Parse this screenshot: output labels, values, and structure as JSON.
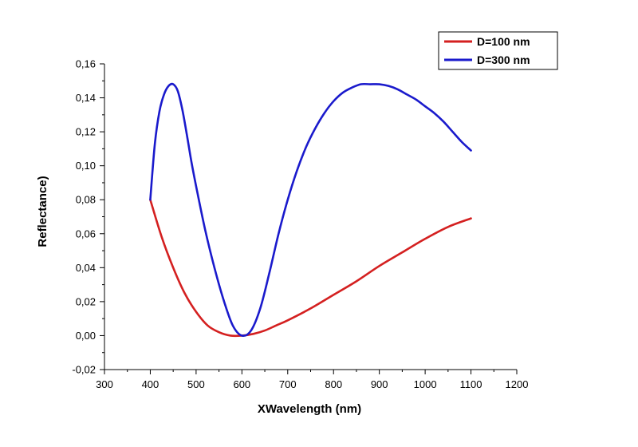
{
  "chart_data": {
    "type": "line",
    "xlabel": "XWavelength (nm)",
    "ylabel": "Reflectance)",
    "xlim": [
      300,
      1200
    ],
    "ylim": [
      -0.02,
      0.16
    ],
    "x_ticks": [
      300,
      400,
      500,
      600,
      700,
      800,
      900,
      1000,
      1100,
      1200
    ],
    "x_tick_labels": [
      "300",
      "400",
      "500",
      "600",
      "700",
      "800",
      "900",
      "1000",
      "1100",
      "1200"
    ],
    "y_ticks": [
      -0.02,
      0.0,
      0.02,
      0.04,
      0.06,
      0.08,
      0.1,
      0.12,
      0.14,
      0.16
    ],
    "y_tick_labels": [
      "-0,02",
      "0,00",
      "0,02",
      "0,04",
      "0,06",
      "0,08",
      "0,10",
      "0,12",
      "0,14",
      "0,16"
    ],
    "grid": false,
    "legend_position": "top-right",
    "series": [
      {
        "name": "D=100 nm",
        "color": "#d42020",
        "x": [
          400,
          425,
          450,
          475,
          500,
          525,
          550,
          575,
          600,
          625,
          650,
          675,
          700,
          750,
          800,
          850,
          900,
          950,
          1000,
          1050,
          1100
        ],
        "y": [
          0.08,
          0.058,
          0.04,
          0.025,
          0.014,
          0.006,
          0.002,
          0.0,
          0.0,
          0.001,
          0.003,
          0.006,
          0.009,
          0.016,
          0.024,
          0.032,
          0.041,
          0.049,
          0.057,
          0.064,
          0.069
        ]
      },
      {
        "name": "D=300 nm",
        "color": "#1a1acc",
        "x": [
          400,
          410,
          420,
          430,
          440,
          450,
          460,
          470,
          480,
          490,
          500,
          520,
          540,
          560,
          580,
          600,
          620,
          640,
          660,
          680,
          700,
          720,
          740,
          760,
          780,
          800,
          820,
          840,
          860,
          880,
          900,
          920,
          940,
          960,
          980,
          1000,
          1020,
          1040,
          1060,
          1080,
          1100
        ],
        "y": [
          0.08,
          0.113,
          0.132,
          0.142,
          0.147,
          0.148,
          0.144,
          0.133,
          0.118,
          0.102,
          0.088,
          0.062,
          0.04,
          0.021,
          0.006,
          0.0,
          0.003,
          0.016,
          0.037,
          0.06,
          0.08,
          0.097,
          0.111,
          0.122,
          0.131,
          0.138,
          0.143,
          0.146,
          0.148,
          0.148,
          0.148,
          0.147,
          0.145,
          0.142,
          0.139,
          0.135,
          0.131,
          0.126,
          0.12,
          0.114,
          0.109
        ]
      }
    ]
  }
}
